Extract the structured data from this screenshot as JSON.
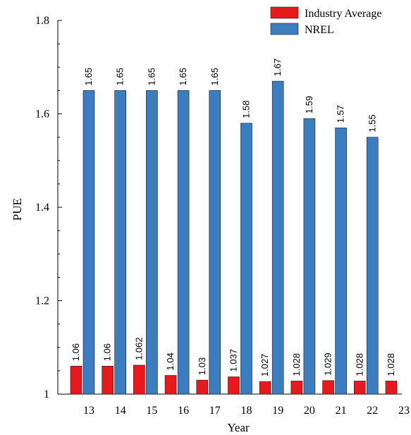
{
  "chart_data": {
    "type": "bar",
    "categories": [
      "13",
      "14",
      "15",
      "16",
      "17",
      "18",
      "19",
      "20",
      "21",
      "22",
      "23"
    ],
    "series": [
      {
        "name": "Industry Average",
        "color": "#e8191c",
        "values": [
          1.06,
          1.06,
          1.062,
          1.04,
          1.03,
          1.037,
          1.027,
          1.028,
          1.029,
          1.028,
          1.028
        ],
        "labels": [
          "1.06",
          "1.06",
          "1.062",
          "1.04",
          "1.03",
          "1.037",
          "1.027",
          "1.028",
          "1.029",
          "1.028",
          "1.028"
        ]
      },
      {
        "name": "NREL",
        "color": "#3b7dbf",
        "values": [
          1.65,
          1.65,
          1.65,
          1.65,
          1.65,
          1.58,
          1.67,
          1.59,
          1.57,
          1.55,
          null
        ],
        "labels": [
          "1.65",
          "1.65",
          "1.65",
          "1.65",
          "1.65",
          "1.58",
          "1.67",
          "1.59",
          "1.57",
          "1.55",
          null
        ]
      }
    ],
    "xlabel": "Year",
    "ylabel": "PUE",
    "ylim": [
      1,
      1.8
    ],
    "yticks": [
      "1",
      "1.2",
      "1.4",
      "1.6",
      "1.8"
    ],
    "grid": false,
    "legend_position": "top-right"
  }
}
